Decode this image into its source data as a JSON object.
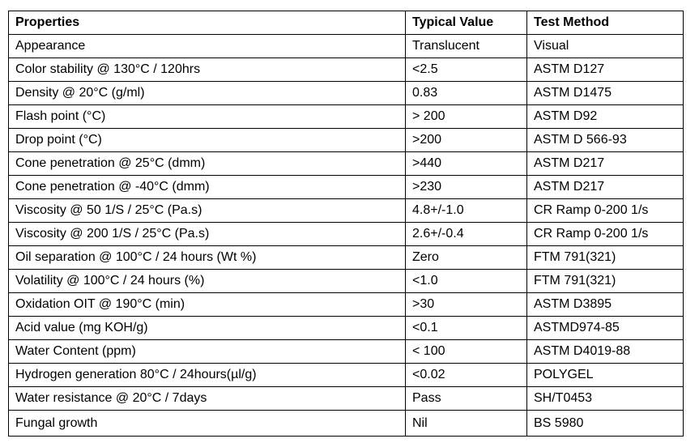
{
  "table": {
    "header": [
      "Properties",
      "Typical Value",
      "Test Method"
    ],
    "rows": [
      [
        "Appearance",
        "Translucent",
        "Visual"
      ],
      [
        "Color stability @ 130°C / 120hrs",
        "<2.5",
        "ASTM D127"
      ],
      [
        "Density @ 20°C (g/ml)",
        "0.83",
        "ASTM D1475"
      ],
      [
        "Flash point (°C)",
        "> 200",
        "ASTM D92"
      ],
      [
        "Drop point (°C)",
        ">200",
        "ASTM D 566-93"
      ],
      [
        "Cone penetration @ 25°C (dmm)",
        ">440",
        "ASTM D217"
      ],
      [
        "Cone penetration @ -40°C (dmm)",
        ">230",
        "ASTM D217"
      ],
      [
        "Viscosity @ 50 1/S / 25°C (Pa.s)",
        "4.8+/-1.0",
        "CR Ramp 0-200 1/s"
      ],
      [
        "Viscosity @ 200 1/S / 25°C (Pa.s)",
        "2.6+/-0.4",
        "CR Ramp 0-200 1/s"
      ],
      [
        "Oil separation @ 100°C / 24 hours (Wt %)",
        "Zero",
        "FTM 791(321)"
      ],
      [
        "Volatility @ 100°C / 24 hours (%)",
        "<1.0",
        "FTM 791(321)"
      ],
      [
        "Oxidation OIT @ 190°C (min)",
        ">30",
        "ASTM D3895"
      ],
      [
        "Acid value (mg KOH/g)",
        "<0.1",
        "ASTMD974-85"
      ],
      [
        "Water Content (ppm)",
        "< 100",
        "ASTM D4019-88"
      ],
      [
        "Hydrogen generation 80°C / 24hours(µl/g)",
        "<0.02",
        "POLYGEL"
      ],
      [
        "Water resistance @ 20°C / 7days",
        "Pass",
        "SH/T0453"
      ],
      [
        "Fungal growth",
        "Nil",
        "BS 5980"
      ]
    ]
  }
}
